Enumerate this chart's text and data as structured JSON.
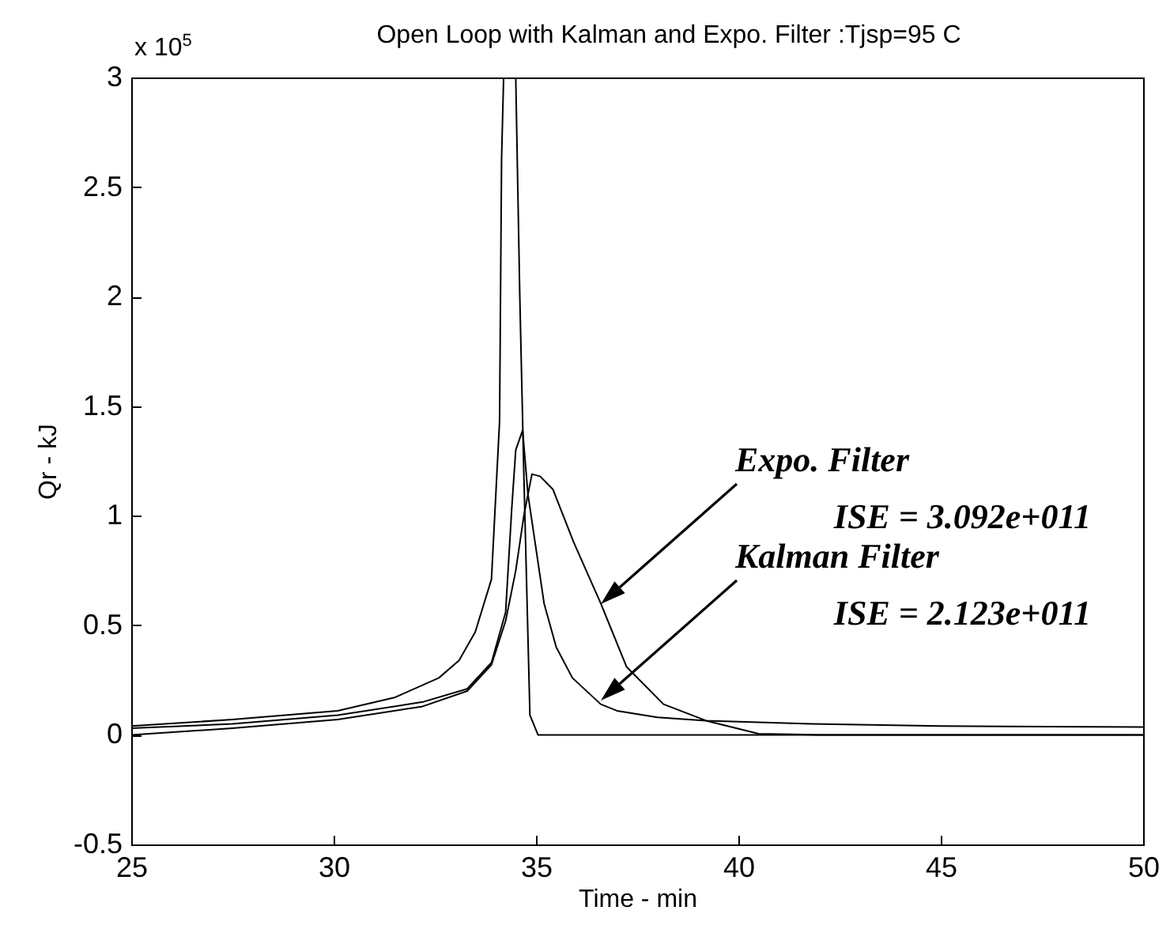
{
  "chart_data": {
    "type": "line",
    "title": "Open Loop with Kalman and Expo. Filter :Tjsp=95 C",
    "xlabel": "Time - min",
    "ylabel": "Qr - kJ",
    "xlim": [
      25,
      50
    ],
    "xticks": [
      25,
      30,
      35,
      40,
      45,
      50
    ],
    "ylim": [
      -0.5,
      3
    ],
    "yticks": [
      -0.5,
      0,
      0.5,
      1,
      1.5,
      2,
      2.5,
      3
    ],
    "annotations": [
      "x 10$^{5}$",
      "Expo. Filter\nISE = 3.092e+011",
      "Kalman Filter\nISE = 2.123e+011"
    ],
    "series": [
      {
        "color": "#000000",
        "x": [
          25,
          27.5,
          30.1,
          31.5,
          32.6,
          33.1,
          33.5,
          33.9,
          34.1,
          34.15,
          34.2,
          34.5,
          34.6,
          34.7,
          34.85,
          35.05,
          35.3,
          40,
          45,
          50
        ],
        "values": [
          0.04,
          0.07,
          0.11,
          0.17,
          0.26,
          0.34,
          0.47,
          0.71,
          1.43,
          2.63,
          3,
          3,
          2.0,
          1.19,
          0.09,
          0.0,
          0.0,
          0.0,
          0.0,
          0.0
        ]
      },
      {
        "color": "#000000",
        "x": [
          25,
          27.5,
          30.1,
          32.2,
          33.3,
          33.9,
          34.25,
          34.4,
          34.5,
          34.67,
          34.8,
          35.0,
          35.2,
          35.5,
          35.9,
          36.6,
          37.0,
          38.0,
          39.2,
          41.8,
          45,
          50
        ],
        "values": [
          0.03,
          0.05,
          0.09,
          0.15,
          0.21,
          0.33,
          0.56,
          1.03,
          1.3,
          1.39,
          1.1,
          0.85,
          0.6,
          0.4,
          0.26,
          0.14,
          0.11,
          0.08,
          0.065,
          0.05,
          0.04,
          0.036
        ]
      },
      {
        "color": "#000000",
        "x": [
          25,
          27.5,
          30.1,
          32.2,
          33.3,
          33.9,
          34.25,
          34.5,
          34.7,
          34.9,
          35.1,
          35.42,
          35.93,
          36.6,
          37.24,
          38.15,
          39.2,
          40.5,
          42,
          45,
          50
        ],
        "values": [
          0.0,
          0.03,
          0.07,
          0.13,
          0.2,
          0.32,
          0.52,
          0.75,
          1.0,
          1.19,
          1.18,
          1.12,
          0.88,
          0.6,
          0.31,
          0.14,
          0.065,
          0.005,
          0.0,
          0.0,
          0.0
        ]
      }
    ]
  }
}
